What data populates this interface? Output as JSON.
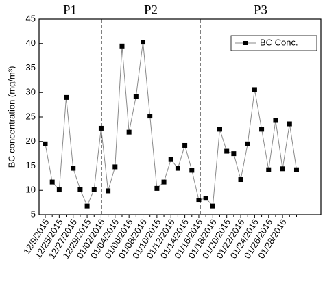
{
  "chart_data": {
    "type": "line",
    "ylabel": "BC concentration (mg/m³)",
    "annotations": [
      "P1",
      "P2",
      "P3"
    ],
    "categories": [
      "12/9/2015",
      null,
      "12/25/2015",
      null,
      "12/27/2015",
      null,
      "12/29/2015",
      null,
      "01/02/2016",
      null,
      "01/04/2016",
      null,
      "01/06/2016",
      null,
      "01/08/2016",
      null,
      "01/10/2016",
      null,
      "01/12/2016",
      null,
      "01/14/2016",
      null,
      "01/16/2016",
      null,
      "01/18/2016",
      null,
      "01/20/2016",
      null,
      "01/22/2016",
      null,
      "01/24/2016",
      null,
      "01/26/2016",
      null,
      "01/28/2016",
      null,
      null
    ],
    "series": [
      {
        "name": "BC Conc.",
        "color": "#000000",
        "line_color": "#8a8a8a",
        "values": [
          19.5,
          11.7,
          10.1,
          29,
          14.5,
          10.2,
          6.8,
          10.2,
          22.7,
          9.9,
          14.8,
          39.5,
          21.9,
          29.2,
          40.3,
          25.2,
          10.4,
          11.7,
          16.3,
          14.5,
          19.2,
          14.1,
          8,
          8.4,
          6.8,
          22.5,
          18,
          17.5,
          12.2,
          19.5,
          30.6,
          22.5,
          14.2,
          24.3,
          14.4,
          23.6,
          14.2
        ]
      }
    ],
    "ylim": [
      5,
      45
    ],
    "yticks": [
      5,
      10,
      15,
      20,
      25,
      30,
      35,
      40,
      45
    ],
    "legend": "upper right"
  }
}
